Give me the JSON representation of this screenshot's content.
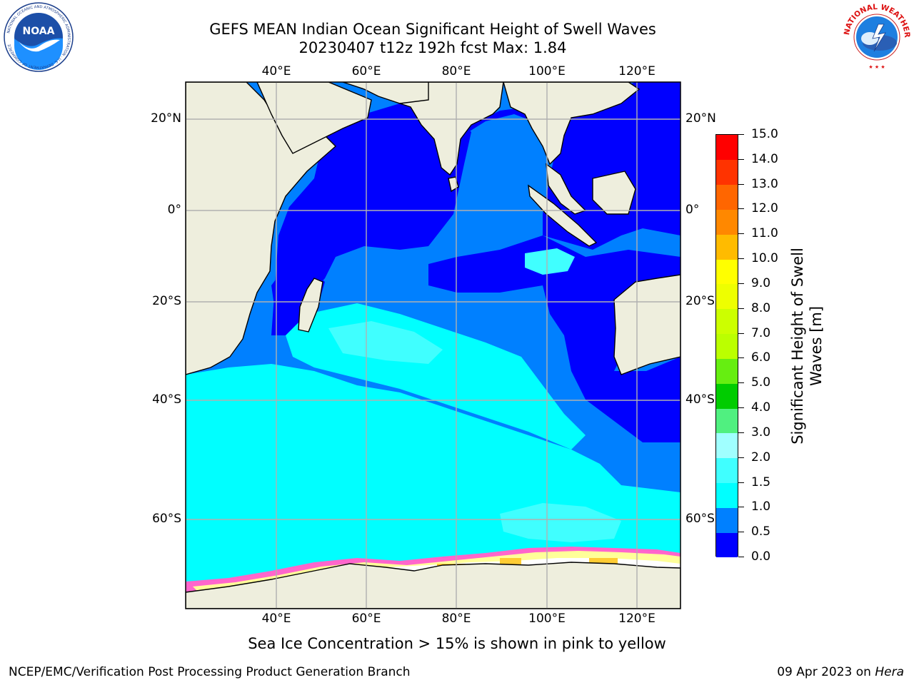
{
  "header": {
    "title_line1": "GEFS MEAN Indian Ocean Significant Height of Swell Waves",
    "title_line2": "20230407 t12z 192h fcst   Max: 1.84"
  },
  "logos": {
    "left": {
      "icon": "noaa-logo",
      "text": "NOAA",
      "ring_text": "NATIONAL OCEANIC AND ATMOSPHERIC ADMINISTRATION · U.S. DEPARTMENT OF COMMERCE"
    },
    "right": {
      "icon": "nws-logo",
      "ring_text": "NATIONAL WEATHER SERVICE"
    }
  },
  "map": {
    "lon_labels_top": [
      "40°E",
      "60°E",
      "80°E",
      "100°E",
      "120°E"
    ],
    "lon_labels_bottom": [
      "40°E",
      "60°E",
      "80°E",
      "100°E",
      "120°E"
    ],
    "lat_labels_left": [
      "20°N",
      "0°",
      "20°S",
      "40°S",
      "60°S"
    ],
    "lat_labels_right": [
      "20°N",
      "0°",
      "20°S",
      "40°S",
      "60°S"
    ],
    "colors": {
      "land": "#eeeedd",
      "grid": "#b0b0b0",
      "sea_ice": [
        "#ff66cc",
        "#ffff99",
        "#ffcc33",
        "#ffffff"
      ]
    }
  },
  "colorbar": {
    "label": "Significant Height of Swell Waves [m]",
    "label_line1": "Significant Height of Swell",
    "label_line2": "Waves [m]",
    "tick_labels": [
      "0.0",
      "0.5",
      "1.0",
      "1.5",
      "2.0",
      "3.0",
      "4.0",
      "5.0",
      "6.0",
      "7.0",
      "8.0",
      "9.0",
      "10.0",
      "11.0",
      "12.0",
      "13.0",
      "14.0",
      "15.0"
    ],
    "bins": [
      {
        "from": "0.0",
        "to": "0.5",
        "color": "#0000ff"
      },
      {
        "from": "0.5",
        "to": "1.0",
        "color": "#0080ff"
      },
      {
        "from": "1.0",
        "to": "1.5",
        "color": "#00ffff"
      },
      {
        "from": "1.5",
        "to": "2.0",
        "color": "#40ffff"
      },
      {
        "from": "2.0",
        "to": "3.0",
        "color": "#a0ffff"
      },
      {
        "from": "3.0",
        "to": "4.0",
        "color": "#50f080"
      },
      {
        "from": "4.0",
        "to": "5.0",
        "color": "#00cc00"
      },
      {
        "from": "5.0",
        "to": "6.0",
        "color": "#66ee11"
      },
      {
        "from": "6.0",
        "to": "7.0",
        "color": "#bbff00"
      },
      {
        "from": "7.0",
        "to": "8.0",
        "color": "#ccff00"
      },
      {
        "from": "8.0",
        "to": "9.0",
        "color": "#eeff00"
      },
      {
        "from": "9.0",
        "to": "10.0",
        "color": "#ffff00"
      },
      {
        "from": "10.0",
        "to": "11.0",
        "color": "#ffbb00"
      },
      {
        "from": "11.0",
        "to": "12.0",
        "color": "#ff8800"
      },
      {
        "from": "12.0",
        "to": "13.0",
        "color": "#ff6600"
      },
      {
        "from": "13.0",
        "to": "14.0",
        "color": "#ff3300"
      },
      {
        "from": "14.0",
        "to": "15.0",
        "color": "#ff0000"
      }
    ]
  },
  "notes": {
    "sea_ice": "Sea Ice Concentration > 15% is shown in pink to yellow"
  },
  "footer": {
    "left": "NCEP/EMC/Verification Post Processing Product Generation Branch",
    "date": "09 Apr 2023 on ",
    "machine": "Hera"
  }
}
